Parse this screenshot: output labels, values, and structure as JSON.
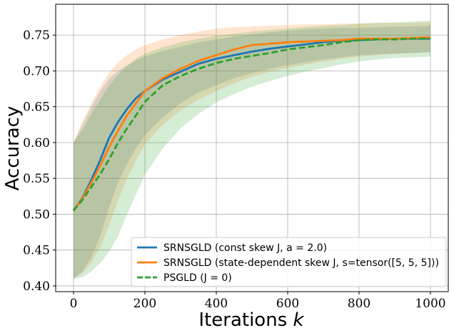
{
  "chart_data": {
    "type": "line",
    "xlabel": "Iterations",
    "xlabel_var": "k",
    "ylabel": "Accuracy",
    "xlim": [
      -50,
      1050
    ],
    "ylim": [
      0.392,
      0.793
    ],
    "xticks": [
      0,
      200,
      400,
      600,
      800,
      1000
    ],
    "xtick_labels": [
      "0",
      "200",
      "400",
      "600",
      "800",
      "1000"
    ],
    "yticks": [
      0.4,
      0.45,
      0.5,
      0.55,
      0.6,
      0.65,
      0.7,
      0.75
    ],
    "ytick_labels": [
      "0.40",
      "0.45",
      "0.50",
      "0.55",
      "0.60",
      "0.65",
      "0.70",
      "0.75"
    ],
    "grid": true,
    "legend_position": "lower-right",
    "x": [
      0,
      25,
      50,
      75,
      100,
      125,
      150,
      175,
      200,
      250,
      300,
      350,
      400,
      450,
      500,
      550,
      600,
      650,
      700,
      750,
      800,
      850,
      900,
      950,
      1000
    ],
    "series": [
      {
        "name": "SRNSGLD (const skew J, a = 2.0)",
        "color": "#1f77b4",
        "style": "solid",
        "values": [
          0.505,
          0.523,
          0.548,
          0.576,
          0.607,
          0.629,
          0.647,
          0.662,
          0.672,
          0.688,
          0.699,
          0.71,
          0.717,
          0.722,
          0.727,
          0.731,
          0.734,
          0.737,
          0.74,
          0.742,
          0.743,
          0.744,
          0.745,
          0.745,
          0.745
        ],
        "lower": [
          0.41,
          0.42,
          0.44,
          0.47,
          0.51,
          0.545,
          0.57,
          0.592,
          0.61,
          0.635,
          0.655,
          0.67,
          0.68,
          0.69,
          0.697,
          0.703,
          0.708,
          0.712,
          0.716,
          0.719,
          0.722,
          0.723,
          0.724,
          0.725,
          0.726
        ],
        "upper": [
          0.6,
          0.625,
          0.65,
          0.672,
          0.69,
          0.7,
          0.708,
          0.715,
          0.72,
          0.728,
          0.734,
          0.74,
          0.744,
          0.748,
          0.751,
          0.754,
          0.756,
          0.758,
          0.759,
          0.76,
          0.76,
          0.761,
          0.762,
          0.762,
          0.763
        ]
      },
      {
        "name": "SRNSGLD (state-dependent skew J, s=tensor([5, 5, 5]))",
        "color": "#ff7f0e",
        "style": "solid",
        "values": [
          0.505,
          0.522,
          0.544,
          0.568,
          0.594,
          0.617,
          0.638,
          0.655,
          0.672,
          0.69,
          0.703,
          0.714,
          0.722,
          0.73,
          0.736,
          0.738,
          0.74,
          0.741,
          0.742,
          0.743,
          0.745,
          0.745,
          0.745,
          0.746,
          0.747
        ],
        "lower": [
          0.41,
          0.418,
          0.432,
          0.455,
          0.485,
          0.52,
          0.55,
          0.575,
          0.598,
          0.625,
          0.645,
          0.66,
          0.672,
          0.683,
          0.692,
          0.699,
          0.704,
          0.709,
          0.713,
          0.717,
          0.72,
          0.722,
          0.724,
          0.725,
          0.727
        ],
        "upper": [
          0.6,
          0.63,
          0.655,
          0.678,
          0.698,
          0.712,
          0.722,
          0.73,
          0.736,
          0.744,
          0.75,
          0.755,
          0.759,
          0.761,
          0.762,
          0.763,
          0.764,
          0.765,
          0.765,
          0.766,
          0.766,
          0.767,
          0.767,
          0.767,
          0.768
        ]
      },
      {
        "name": "PSGLD (J = 0)",
        "color": "#2ca02c",
        "style": "dashed",
        "values": [
          0.505,
          0.52,
          0.538,
          0.556,
          0.577,
          0.6,
          0.62,
          0.638,
          0.657,
          0.68,
          0.693,
          0.703,
          0.711,
          0.717,
          0.721,
          0.725,
          0.73,
          0.733,
          0.736,
          0.74,
          0.743,
          0.744,
          0.744,
          0.745,
          0.745
        ],
        "lower": [
          0.41,
          0.412,
          0.42,
          0.432,
          0.448,
          0.47,
          0.5,
          0.528,
          0.555,
          0.592,
          0.62,
          0.64,
          0.656,
          0.668,
          0.678,
          0.686,
          0.693,
          0.699,
          0.704,
          0.709,
          0.713,
          0.716,
          0.718,
          0.719,
          0.72
        ],
        "upper": [
          0.6,
          0.618,
          0.64,
          0.66,
          0.68,
          0.695,
          0.707,
          0.717,
          0.724,
          0.733,
          0.74,
          0.745,
          0.749,
          0.752,
          0.755,
          0.757,
          0.759,
          0.761,
          0.763,
          0.764,
          0.766,
          0.767,
          0.768,
          0.769,
          0.77
        ]
      }
    ]
  }
}
